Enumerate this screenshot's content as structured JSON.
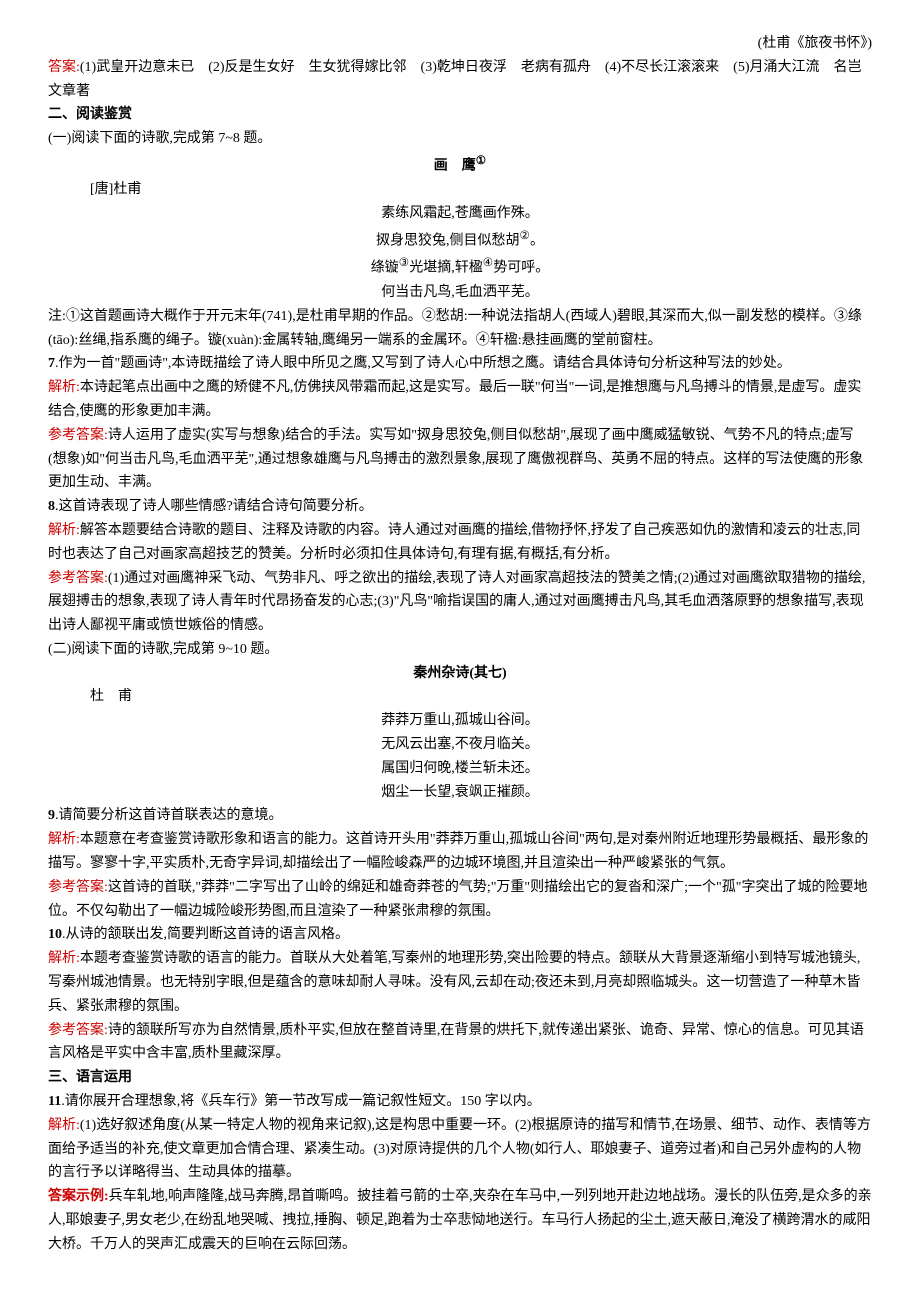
{
  "cite1": "(杜甫《旅夜书怀》)",
  "ans_label": "答案:",
  "ans1": "(1)武皇开边意未已　(2)反是生女好　生女犹得嫁比邻　(3)乾坤日夜浮　老病有孤舟　(4)不尽长江滚滚来　(5)月涌大江流　名岂文章著",
  "sec2": "二、阅读鉴赏",
  "part1_intro": "(一)阅读下面的诗歌,完成第 7~8 题。",
  "poem1_title": "画　鹰",
  "poem1_title_sup": "①",
  "poem1_author": "[唐]杜甫",
  "poem1_l1": "素练风霜起,苍鹰画作殊。",
  "poem1_l2": "㧐身思狡兔,侧目似愁胡",
  "poem1_l2_sup": "②",
  "poem1_l2_end": "。",
  "poem1_l3": "绦镟",
  "poem1_l3_sup": "③",
  "poem1_l3_mid": "光堪摘,轩楹",
  "poem1_l3_sup2": "④",
  "poem1_l3_end": "势可呼。",
  "poem1_l4": "何当击凡鸟,毛血洒平芜。",
  "note1": "注:①这首题画诗大概作于开元末年(741),是杜甫早期的作品。②愁胡:一种说法指胡人(西域人)碧眼,其深而大,似一副发愁的模样。③绦(tāo):丝绳,指系鹰的绳子。镟(xuàn):金属转轴,鹰绳另一端系的金属环。④轩楹:悬挂画鹰的堂前窗柱。",
  "q7": "7.作为一首\"题画诗\",本诗既描绘了诗人眼中所见之鹰,又写到了诗人心中所想之鹰。请结合具体诗句分析这种写法的妙处。",
  "jiexi_label": "解析:",
  "jiexi7": "本诗起笔点出画中之鹰的矫健不凡,仿佛挟风带霜而起,这是实写。最后一联\"何当\"一词,是推想鹰与凡鸟搏斗的情景,是虚写。虚实结合,使鹰的形象更加丰满。",
  "ckda_label": "参考答案:",
  "ckda7": "诗人运用了虚实(实写与想象)结合的手法。实写如\"㧐身思狡兔,侧目似愁胡\",展现了画中鹰威猛敏锐、气势不凡的特点;虚写(想象)如\"何当击凡鸟,毛血洒平芜\",通过想象雄鹰与凡鸟搏击的激烈景象,展现了鹰傲视群鸟、英勇不屈的特点。这样的写法使鹰的形象更加生动、丰满。",
  "q8": "8.这首诗表现了诗人哪些情感?请结合诗句简要分析。",
  "jiexi8": "解答本题要结合诗歌的题目、注释及诗歌的内容。诗人通过对画鹰的描绘,借物抒怀,抒发了自己疾恶如仇的激情和凌云的壮志,同时也表达了自己对画家高超技艺的赞美。分析时必须扣住具体诗句,有理有据,有概括,有分析。",
  "ckda8": "(1)通过对画鹰神采飞动、气势非凡、呼之欲出的描绘,表现了诗人对画家高超技法的赞美之情;(2)通过对画鹰欲取猎物的描绘,展翅搏击的想象,表现了诗人青年时代昂扬奋发的心志;(3)\"凡鸟\"喻指误国的庸人,通过对画鹰搏击凡鸟,其毛血洒落原野的想象描写,表现出诗人鄙视平庸或愤世嫉俗的情感。",
  "part2_intro": "(二)阅读下面的诗歌,完成第 9~10 题。",
  "poem2_title": "秦州杂诗(其七)",
  "poem2_author": "杜　甫",
  "poem2_l1": "莽莽万重山,孤城山谷间。",
  "poem2_l2": "无风云出塞,不夜月临关。",
  "poem2_l3": "属国归何晚,楼兰斩未还。",
  "poem2_l4": "烟尘一长望,衰飒正摧颜。",
  "q9": "9.请简要分析这首诗首联表达的意境。",
  "jiexi9": "本题意在考查鉴赏诗歌形象和语言的能力。这首诗开头用\"莽莽万重山,孤城山谷间\"两句,是对秦州附近地理形势最概括、最形象的描写。寥寥十字,平实质朴,无奇字异词,却描绘出了一幅险峻森严的边城环境图,并且渲染出一种严峻紧张的气氛。",
  "ckda9": "这首诗的首联,\"莽莽\"二字写出了山岭的绵延和雄奇莽苍的气势;\"万重\"则描绘出它的复沓和深广;一个\"孤\"字突出了城的险要地位。不仅勾勒出了一幅边城险峻形势图,而且渲染了一种紧张肃穆的氛围。",
  "q10": "10.从诗的颔联出发,简要判断这首诗的语言风格。",
  "jiexi10": "本题考查鉴赏诗歌的语言的能力。首联从大处着笔,写秦州的地理形势,突出险要的特点。颔联从大背景逐渐缩小到特写城池镜头,写秦州城池情景。也无特别字眼,但是蕴含的意味却耐人寻味。没有风,云却在动;夜还未到,月亮却照临城头。这一切营造了一种草木皆兵、紧张肃穆的氛围。",
  "ckda10": "诗的颔联所写亦为自然情景,质朴平实,但放在整首诗里,在背景的烘托下,就传递出紧张、诡奇、异常、惊心的信息。可见其语言风格是平实中含丰富,质朴里藏深厚。",
  "sec3": "三、语言运用",
  "q11": "11.请你展开合理想象,将《兵车行》第一节改写成一篇记叙性短文。150 字以内。",
  "jiexi11": "(1)选好叙述角度(从某一特定人物的视角来记叙),这是构思中重要一环。(2)根据原诗的描写和情节,在场景、细节、动作、表情等方面给予适当的补充,使文章更加合情合理、紧凑生动。(3)对原诗提供的几个人物(如行人、耶娘妻子、道旁过者)和自己另外虚构的人物的言行予以详略得当、生动具体的描摹。",
  "ans11_label": "答案示例:",
  "ans11": "兵车轧地,响声隆隆,战马奔腾,昂首嘶鸣。披挂着弓箭的士卒,夹杂在车马中,一列列地开赴边地战场。漫长的队伍旁,是众多的亲人,耶娘妻子,男女老少,在纷乱地哭喊、拽拉,捶胸、顿足,跑着为士卒悲恸地送行。车马行人扬起的尘土,遮天蔽日,淹没了横跨渭水的咸阳大桥。千万人的哭声汇成震天的巨响在云际回荡。"
}
